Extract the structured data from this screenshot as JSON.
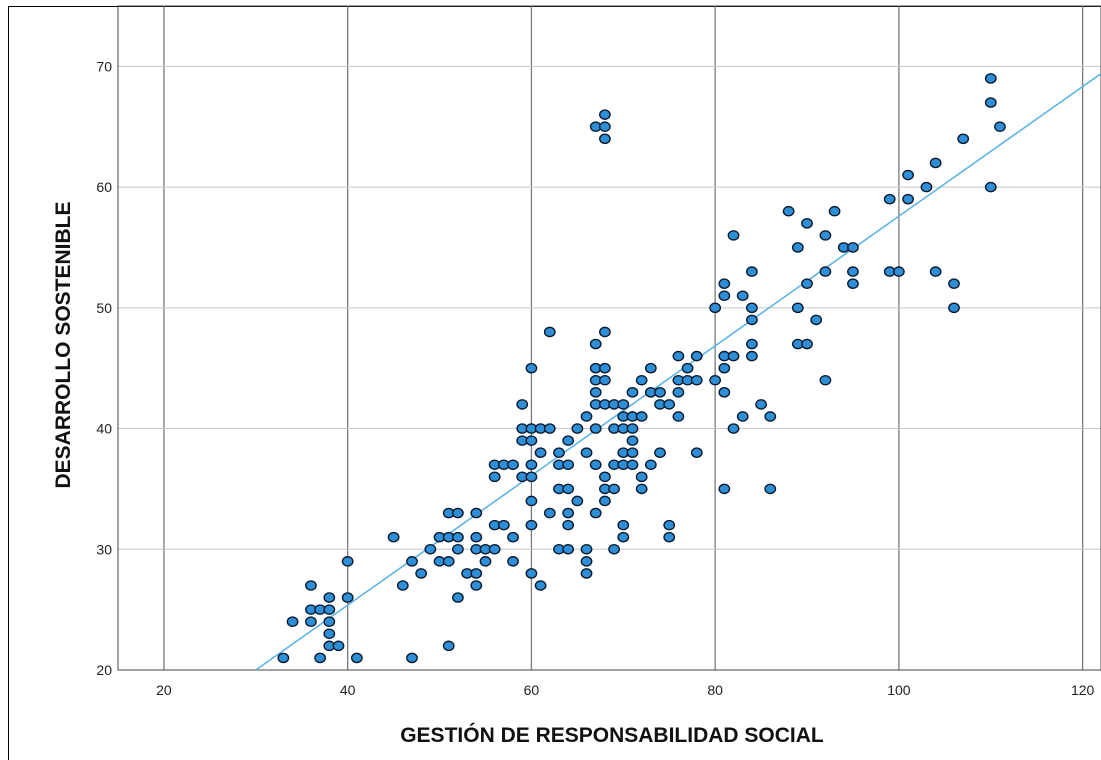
{
  "chart_data": {
    "type": "scatter",
    "xlabel": "GESTIÓN DE RESPONSABILIDAD SOCIAL",
    "ylabel": "DESARROLLO SOSTENIBLE",
    "xlim": [
      15,
      122
    ],
    "ylim": [
      20,
      75
    ],
    "x_ticks": [
      20,
      40,
      60,
      80,
      100,
      120
    ],
    "y_ticks": [
      20,
      30,
      40,
      50,
      60,
      70
    ],
    "grid": true,
    "marker_fill": "#2e8fd6",
    "marker_edge": "#0a1a2e",
    "fit_line_color": "#5fb4e8",
    "fit_line": {
      "x": [
        30,
        122
      ],
      "y": [
        20,
        69.4
      ]
    },
    "points": [
      [
        33,
        21
      ],
      [
        34,
        24
      ],
      [
        36,
        27
      ],
      [
        36,
        25
      ],
      [
        36,
        24
      ],
      [
        37,
        25
      ],
      [
        37,
        21
      ],
      [
        38,
        26
      ],
      [
        38,
        25
      ],
      [
        38,
        24
      ],
      [
        38,
        23
      ],
      [
        38,
        22
      ],
      [
        39,
        22
      ],
      [
        40,
        29
      ],
      [
        40,
        26
      ],
      [
        41,
        21
      ],
      [
        45,
        31
      ],
      [
        46,
        27
      ],
      [
        47,
        29
      ],
      [
        47,
        21
      ],
      [
        48,
        28
      ],
      [
        49,
        30
      ],
      [
        50,
        31
      ],
      [
        50,
        29
      ],
      [
        51,
        33
      ],
      [
        51,
        31
      ],
      [
        51,
        29
      ],
      [
        51,
        22
      ],
      [
        52,
        33
      ],
      [
        52,
        31
      ],
      [
        52,
        30
      ],
      [
        52,
        26
      ],
      [
        53,
        28
      ],
      [
        54,
        33
      ],
      [
        54,
        31
      ],
      [
        54,
        30
      ],
      [
        54,
        28
      ],
      [
        54,
        27
      ],
      [
        55,
        30
      ],
      [
        55,
        29
      ],
      [
        56,
        37
      ],
      [
        56,
        36
      ],
      [
        56,
        32
      ],
      [
        56,
        30
      ],
      [
        57,
        37
      ],
      [
        57,
        32
      ],
      [
        58,
        37
      ],
      [
        58,
        31
      ],
      [
        58,
        29
      ],
      [
        59,
        42
      ],
      [
        59,
        40
      ],
      [
        59,
        39
      ],
      [
        59,
        36
      ],
      [
        60,
        45
      ],
      [
        60,
        40
      ],
      [
        60,
        39
      ],
      [
        60,
        37
      ],
      [
        60,
        36
      ],
      [
        60,
        34
      ],
      [
        60,
        32
      ],
      [
        60,
        28
      ],
      [
        61,
        40
      ],
      [
        61,
        38
      ],
      [
        61,
        27
      ],
      [
        62,
        48
      ],
      [
        62,
        40
      ],
      [
        62,
        33
      ],
      [
        63,
        38
      ],
      [
        63,
        37
      ],
      [
        63,
        35
      ],
      [
        63,
        30
      ],
      [
        64,
        39
      ],
      [
        64,
        37
      ],
      [
        64,
        35
      ],
      [
        64,
        33
      ],
      [
        64,
        32
      ],
      [
        64,
        30
      ],
      [
        65,
        40
      ],
      [
        65,
        34
      ],
      [
        66,
        41
      ],
      [
        66,
        38
      ],
      [
        66,
        30
      ],
      [
        66,
        29
      ],
      [
        66,
        28
      ],
      [
        67,
        47
      ],
      [
        67,
        45
      ],
      [
        67,
        44
      ],
      [
        67,
        43
      ],
      [
        67,
        42
      ],
      [
        67,
        40
      ],
      [
        67,
        37
      ],
      [
        67,
        33
      ],
      [
        67,
        65
      ],
      [
        68,
        66
      ],
      [
        68,
        65
      ],
      [
        68,
        64
      ],
      [
        68,
        48
      ],
      [
        68,
        45
      ],
      [
        68,
        44
      ],
      [
        68,
        42
      ],
      [
        68,
        36
      ],
      [
        68,
        35
      ],
      [
        68,
        34
      ],
      [
        69,
        42
      ],
      [
        69,
        40
      ],
      [
        69,
        37
      ],
      [
        69,
        35
      ],
      [
        69,
        30
      ],
      [
        70,
        42
      ],
      [
        70,
        41
      ],
      [
        70,
        40
      ],
      [
        70,
        38
      ],
      [
        70,
        37
      ],
      [
        70,
        32
      ],
      [
        70,
        31
      ],
      [
        71,
        43
      ],
      [
        71,
        41
      ],
      [
        71,
        40
      ],
      [
        71,
        39
      ],
      [
        71,
        38
      ],
      [
        71,
        37
      ],
      [
        72,
        44
      ],
      [
        72,
        41
      ],
      [
        72,
        36
      ],
      [
        72,
        35
      ],
      [
        73,
        45
      ],
      [
        73,
        43
      ],
      [
        73,
        37
      ],
      [
        74,
        43
      ],
      [
        74,
        42
      ],
      [
        74,
        38
      ],
      [
        75,
        42
      ],
      [
        75,
        32
      ],
      [
        75,
        31
      ],
      [
        76,
        46
      ],
      [
        76,
        44
      ],
      [
        76,
        43
      ],
      [
        76,
        41
      ],
      [
        77,
        45
      ],
      [
        77,
        44
      ],
      [
        78,
        46
      ],
      [
        78,
        44
      ],
      [
        78,
        38
      ],
      [
        80,
        50
      ],
      [
        80,
        44
      ],
      [
        81,
        52
      ],
      [
        81,
        51
      ],
      [
        81,
        46
      ],
      [
        81,
        45
      ],
      [
        81,
        43
      ],
      [
        81,
        35
      ],
      [
        82,
        56
      ],
      [
        82,
        46
      ],
      [
        82,
        40
      ],
      [
        83,
        51
      ],
      [
        83,
        41
      ],
      [
        84,
        53
      ],
      [
        84,
        50
      ],
      [
        84,
        49
      ],
      [
        84,
        47
      ],
      [
        84,
        46
      ],
      [
        85,
        42
      ],
      [
        86,
        41
      ],
      [
        86,
        35
      ],
      [
        88,
        58
      ],
      [
        89,
        55
      ],
      [
        89,
        50
      ],
      [
        89,
        47
      ],
      [
        90,
        57
      ],
      [
        90,
        52
      ],
      [
        90,
        47
      ],
      [
        91,
        49
      ],
      [
        92,
        56
      ],
      [
        92,
        53
      ],
      [
        92,
        44
      ],
      [
        93,
        58
      ],
      [
        94,
        55
      ],
      [
        95,
        55
      ],
      [
        95,
        53
      ],
      [
        95,
        52
      ],
      [
        99,
        59
      ],
      [
        99,
        53
      ],
      [
        100,
        53
      ],
      [
        101,
        61
      ],
      [
        101,
        59
      ],
      [
        103,
        60
      ],
      [
        104,
        62
      ],
      [
        104,
        53
      ],
      [
        106,
        52
      ],
      [
        106,
        50
      ],
      [
        107,
        64
      ],
      [
        110,
        69
      ],
      [
        110,
        67
      ],
      [
        110,
        60
      ],
      [
        111,
        65
      ]
    ]
  }
}
